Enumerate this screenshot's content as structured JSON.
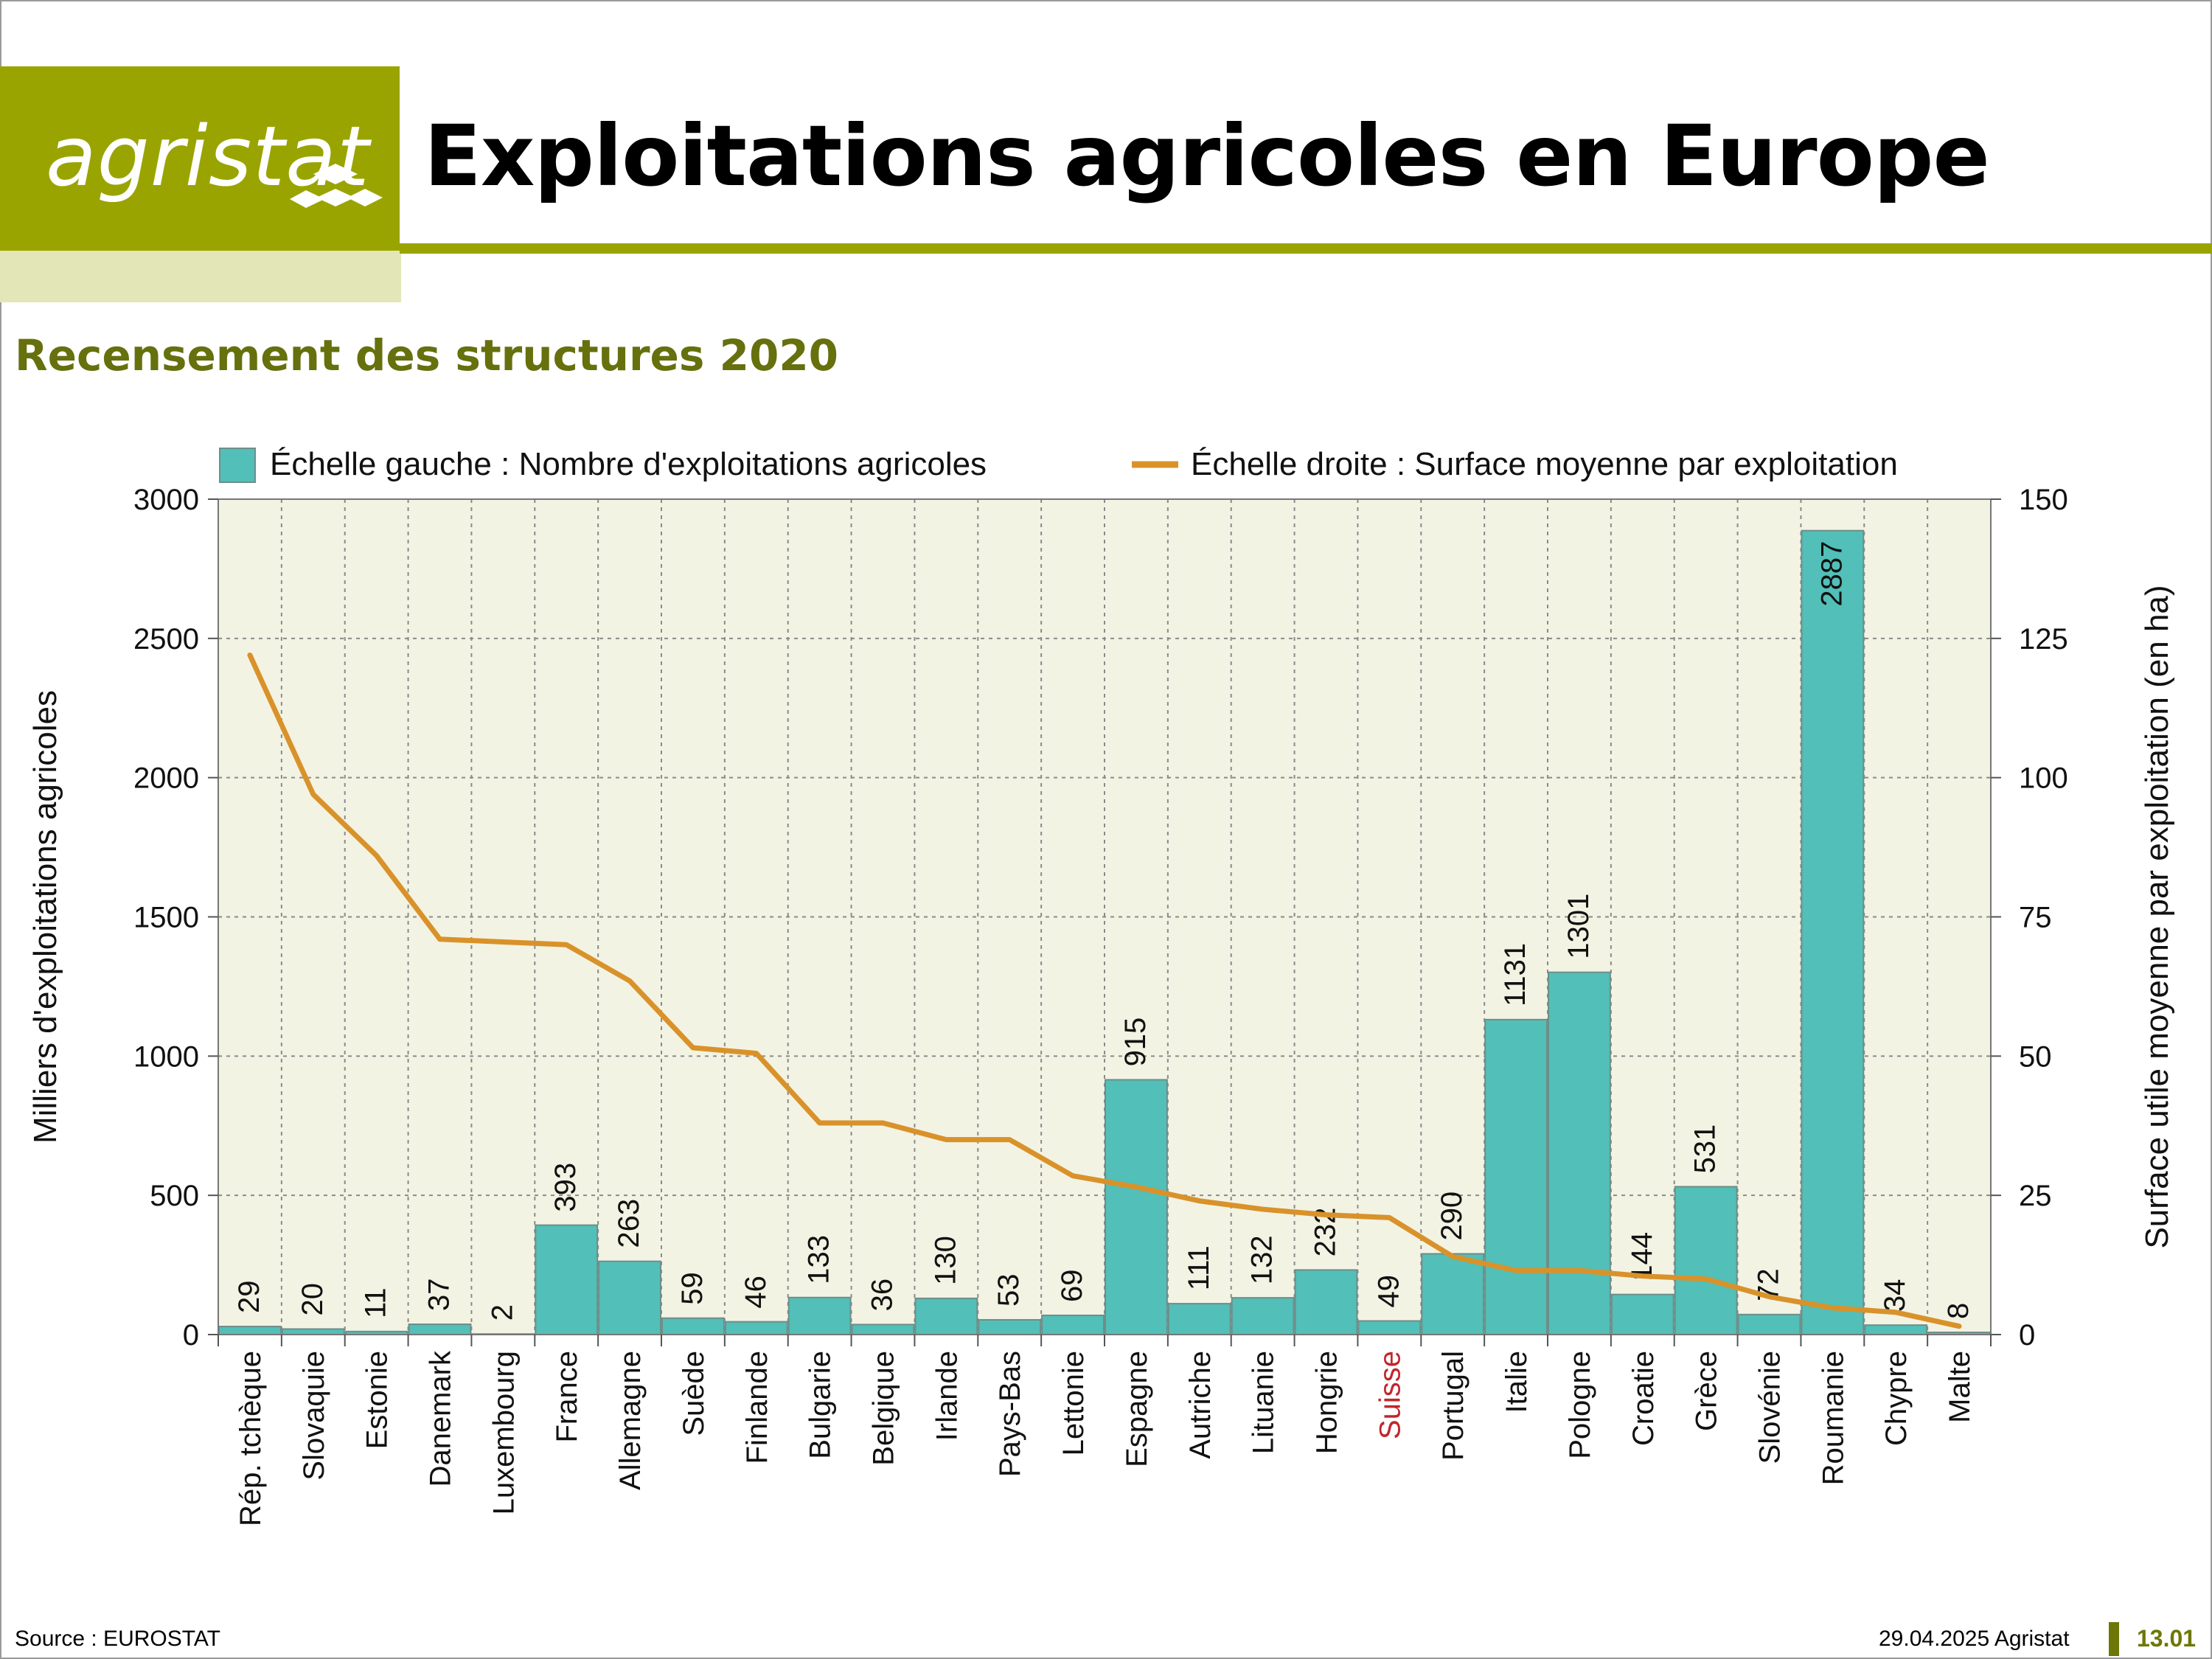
{
  "brand": {
    "logo_text": "agristat",
    "colors": {
      "primary": "#9aa400",
      "light": "#e3e6b6",
      "subtitle": "#66700d",
      "footer_page": "#6d7707"
    }
  },
  "page": {
    "title": "Exploitations agricoles en Europe",
    "subtitle": "Recensement des structures 2020"
  },
  "footer": {
    "source": "Source : EUROSTAT",
    "date": "29.04.2025 Agristat",
    "page_number": "13.01"
  },
  "chart_data": {
    "type": "bar",
    "categories": [
      "Rép. tchèque",
      "Slovaquie",
      "Estonie",
      "Danemark",
      "Luxembourg",
      "France",
      "Allemagne",
      "Suède",
      "Finlande",
      "Bulgarie",
      "Belgique",
      "Irlande",
      "Pays-Bas",
      "Lettonie",
      "Espagne",
      "Autriche",
      "Lituanie",
      "Hongrie",
      "Suisse",
      "Portugal",
      "Italie",
      "Pologne",
      "Croatie",
      "Grèce",
      "Slovénie",
      "Roumanie",
      "Chypre",
      "Malte"
    ],
    "highlighted_category": "Suisse",
    "highlight_color": "#c0272d",
    "series": [
      {
        "name": "Échelle gauche : Nombre d'exploitations agricoles",
        "type": "bar",
        "axis": "left",
        "color": "#52bfb8",
        "values": [
          29,
          20,
          11,
          37,
          2,
          393,
          263,
          59,
          46,
          133,
          36,
          130,
          53,
          69,
          915,
          111,
          132,
          232,
          49,
          290,
          1131,
          1301,
          144,
          531,
          72,
          2887,
          34,
          8
        ]
      },
      {
        "name": "Échelle droite : Surface moyenne par exploitation",
        "type": "line",
        "axis": "right",
        "color": "#d9922a",
        "values": [
          122,
          97,
          86,
          71,
          70.5,
          70,
          63.5,
          51.5,
          50.5,
          38,
          38,
          35,
          35,
          28.5,
          26.5,
          24,
          22.5,
          21.5,
          21,
          14,
          11.5,
          11.5,
          10.5,
          10,
          6.8,
          4.8,
          4,
          1.5
        ]
      }
    ],
    "ylabel_left": "Milliers d'exploitations agricoles",
    "ylabel_right": "Surface utile moyenne par exploitation (en ha)",
    "ylim_left": [
      0,
      3000
    ],
    "ylim_right": [
      0,
      150
    ],
    "yticks_left": [
      "0",
      "500",
      "1000",
      "1500",
      "2000",
      "2500",
      "3000"
    ],
    "yticks_right": [
      "0",
      "25",
      "50",
      "75",
      "100",
      "125",
      "150"
    ],
    "grid": true,
    "legend": "top",
    "plot_background": "#f3f3e4"
  }
}
